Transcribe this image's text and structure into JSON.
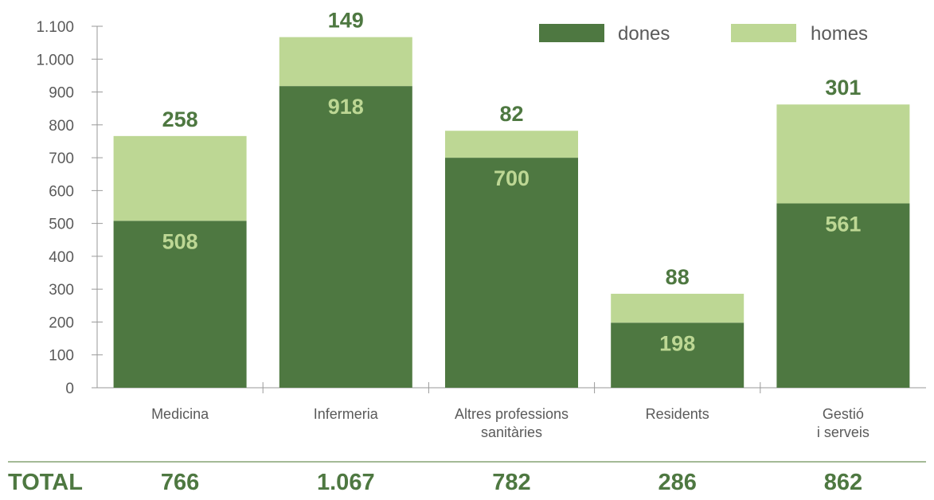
{
  "colors": {
    "dones": "#4e7841",
    "homes": "#bdd794",
    "value_on_dark": "#bdd794",
    "value_on_top": "#4e7841",
    "axis": "#9a9a9a",
    "total_text": "#4e7841",
    "divider": "#86a474"
  },
  "chart_data": {
    "type": "bar",
    "stacked": true,
    "categories": [
      [
        "Medicina"
      ],
      [
        "Infermeria"
      ],
      [
        "Altres professions",
        "sanitàries"
      ],
      [
        "Residents"
      ],
      [
        "Gestió",
        "i serveis"
      ]
    ],
    "series": [
      {
        "name": "dones",
        "values": [
          508,
          918,
          700,
          198,
          561
        ]
      },
      {
        "name": "homes",
        "values": [
          258,
          149,
          82,
          88,
          301
        ]
      }
    ],
    "value_labels": {
      "dones": [
        "508",
        "918",
        "700",
        "198",
        "561"
      ],
      "homes": [
        "258",
        "149",
        "82",
        "88",
        "301"
      ]
    },
    "ylim": [
      0,
      1100
    ],
    "yticks": [
      0,
      100,
      200,
      300,
      400,
      500,
      600,
      700,
      800,
      900,
      1000,
      1100
    ],
    "ytick_labels": [
      "0",
      "100",
      "200",
      "300",
      "400",
      "500",
      "600",
      "700",
      "800",
      "900",
      "1.000",
      "1.100"
    ],
    "legend_position": "top-right",
    "grid": false
  },
  "totals": {
    "label": "TOTAL",
    "values": [
      "766",
      "1.067",
      "782",
      "286",
      "862"
    ]
  }
}
